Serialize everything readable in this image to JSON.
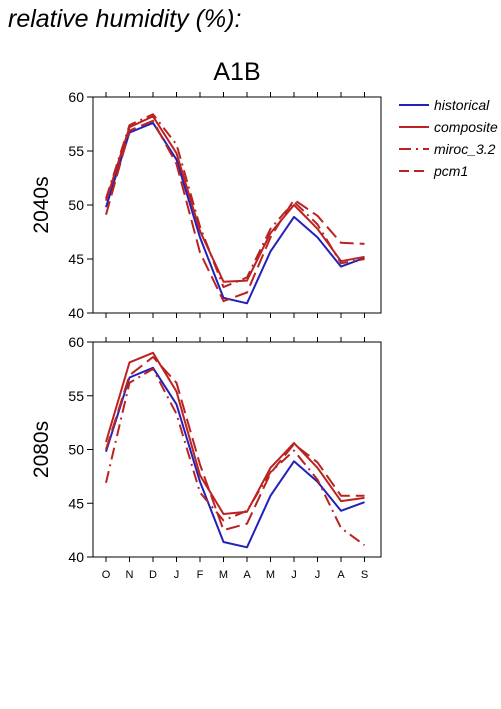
{
  "page": {
    "heading": "relative humidity (%):",
    "scenario": "A1B"
  },
  "chart_data": [
    {
      "type": "line",
      "ylabel": "2040s",
      "xlabel": "",
      "categories": [
        "O",
        "N",
        "D",
        "J",
        "F",
        "M",
        "A",
        "M",
        "J",
        "J",
        "A",
        "S"
      ],
      "ylim": [
        40,
        60
      ],
      "yticks": [
        40,
        45,
        50,
        55,
        60
      ],
      "grid": false,
      "legend": "right",
      "series": [
        {
          "name": "historical",
          "color": "#2222bb",
          "dash": "solid",
          "values": [
            49.8,
            56.7,
            57.6,
            54.2,
            47.0,
            41.4,
            40.9,
            45.7,
            48.9,
            47.0,
            44.3,
            45.1
          ]
        },
        {
          "name": "composite",
          "color": "#bb2222",
          "dash": "solid",
          "values": [
            50.4,
            57.2,
            58.2,
            54.8,
            47.6,
            42.9,
            43.0,
            47.4,
            50.0,
            47.8,
            44.8,
            45.2
          ]
        },
        {
          "name": "miroc_3.2",
          "color": "#bb2222",
          "dash": "dashdot",
          "values": [
            50.6,
            57.4,
            58.4,
            55.6,
            48.0,
            42.4,
            43.3,
            47.8,
            50.3,
            48.2,
            44.6,
            45.0
          ]
        },
        {
          "name": "pcm1",
          "color": "#bb2222",
          "dash": "dash",
          "values": [
            49.1,
            56.9,
            57.8,
            53.8,
            45.6,
            41.1,
            41.9,
            47.0,
            50.5,
            49.0,
            46.5,
            46.4
          ]
        }
      ]
    },
    {
      "type": "line",
      "ylabel": "2080s",
      "xlabel": "",
      "categories": [
        "O",
        "N",
        "D",
        "J",
        "F",
        "M",
        "A",
        "M",
        "J",
        "J",
        "A",
        "S"
      ],
      "ylim": [
        40,
        60
      ],
      "yticks": [
        40,
        45,
        50,
        55,
        60
      ],
      "grid": false,
      "legend": "right",
      "series": [
        {
          "name": "historical",
          "color": "#2222bb",
          "dash": "solid",
          "values": [
            49.8,
            56.7,
            57.6,
            54.2,
            47.0,
            41.4,
            40.9,
            45.7,
            48.9,
            47.0,
            44.3,
            45.1
          ]
        },
        {
          "name": "composite",
          "color": "#bb2222",
          "dash": "solid",
          "values": [
            50.7,
            58.1,
            59.0,
            55.4,
            47.6,
            44.0,
            44.2,
            48.3,
            50.6,
            48.3,
            45.2,
            45.5
          ]
        },
        {
          "name": "miroc_3.2",
          "color": "#bb2222",
          "dash": "dashdot",
          "values": [
            46.9,
            56.2,
            57.5,
            53.3,
            46.0,
            43.4,
            44.3,
            47.9,
            49.9,
            47.2,
            42.7,
            41.1
          ]
        },
        {
          "name": "pcm1",
          "color": "#bb2222",
          "dash": "dash",
          "values": [
            50.0,
            56.9,
            58.6,
            56.2,
            48.6,
            42.5,
            43.1,
            47.8,
            50.5,
            48.8,
            45.7,
            45.7
          ]
        }
      ]
    }
  ]
}
